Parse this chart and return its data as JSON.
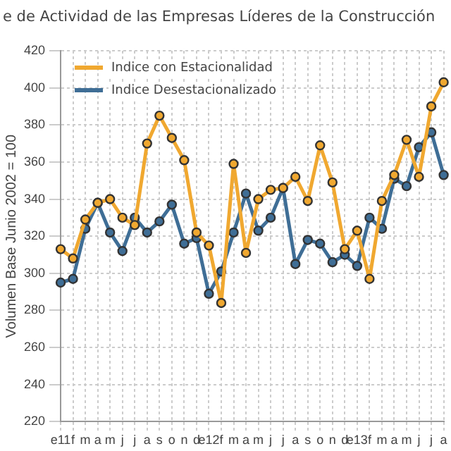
{
  "chart_data": {
    "type": "line",
    "title": "e de Actividad de las Empresas Líderes de la Construcción",
    "ylabel": "Volumen Base Junio 2002 = 100",
    "categories": [
      "e11",
      "f",
      "m",
      "a",
      "m",
      "j",
      "j",
      "a",
      "s",
      "o",
      "n",
      "d",
      "e12",
      "f",
      "m",
      "a",
      "m",
      "j",
      "j",
      "a",
      "s",
      "o",
      "n",
      "d",
      "e13",
      "f",
      "m",
      "a",
      "m",
      "j",
      "j",
      "a"
    ],
    "series": [
      {
        "name": "Indice con Estacionalidad",
        "color": "#f0a830",
        "values": [
          313,
          308,
          329,
          338,
          340,
          330,
          326,
          370,
          385,
          373,
          361,
          322,
          315,
          284,
          359,
          311,
          340,
          345,
          346,
          352,
          339,
          369,
          349,
          313,
          323,
          297,
          339,
          353,
          372,
          352,
          390,
          403
        ]
      },
      {
        "name": "Indice Desestacionalizado",
        "color": "#3f6e96",
        "values": [
          295,
          297,
          324,
          338,
          322,
          312,
          330,
          322,
          328,
          337,
          316,
          319,
          289,
          301,
          322,
          343,
          323,
          330,
          346,
          305,
          318,
          316,
          306,
          310,
          304,
          330,
          324,
          351,
          347,
          368,
          376,
          353
        ]
      }
    ],
    "ylim": [
      220,
      420
    ],
    "yticks": [
      220,
      240,
      260,
      280,
      300,
      320,
      340,
      360,
      380,
      400,
      420
    ],
    "grid": true,
    "legend": "top left",
    "marker": "circle",
    "line_style": "solid"
  }
}
